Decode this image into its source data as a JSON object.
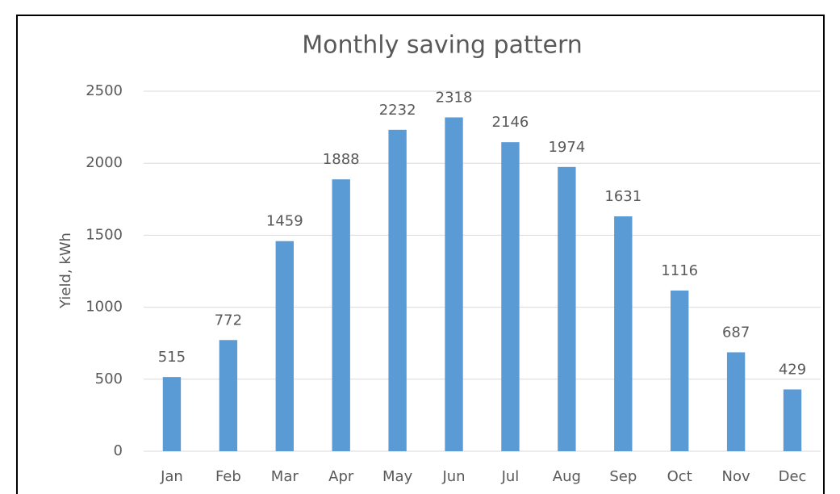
{
  "chart_data": {
    "type": "bar",
    "title": "Monthly saving pattern",
    "y_label": "Yield, kWh",
    "categories": [
      "Jan",
      "Feb",
      "Mar",
      "Apr",
      "May",
      "Jun",
      "Jul",
      "Aug",
      "Sep",
      "Oct",
      "Nov",
      "Dec"
    ],
    "values": [
      515,
      772,
      1459,
      1888,
      2232,
      2318,
      2146,
      1974,
      1631,
      1116,
      687,
      429
    ],
    "color": "#5b9bd5",
    "ylim": [
      0,
      2500
    ],
    "yticks": [
      0,
      500,
      1000,
      1500,
      2000,
      2500
    ],
    "grid": true
  }
}
